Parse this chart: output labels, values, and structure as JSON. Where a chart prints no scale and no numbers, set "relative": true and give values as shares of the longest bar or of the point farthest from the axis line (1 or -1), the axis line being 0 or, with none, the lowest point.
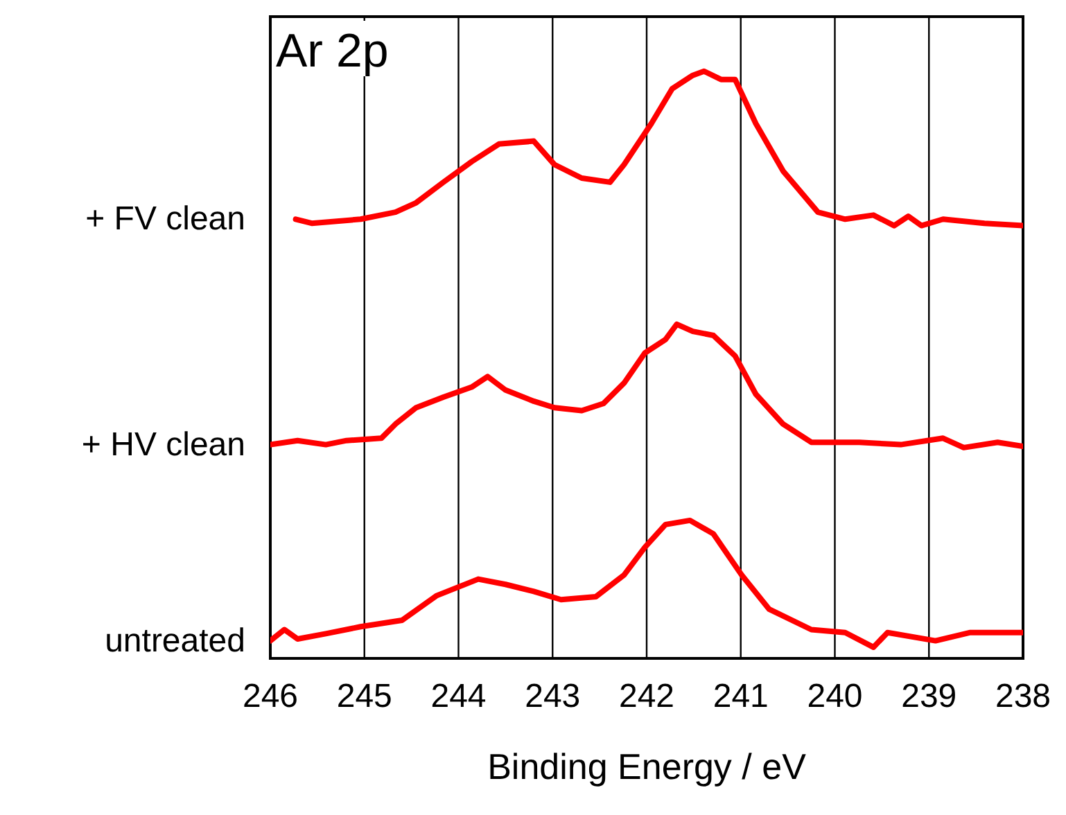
{
  "chart_data": {
    "type": "line",
    "relative": true,
    "xlabel": "Binding Energy / eV",
    "annotations": [
      "Ar 2p"
    ],
    "xlim": [
      246,
      238
    ],
    "xticks": [
      246,
      245,
      244,
      243,
      242,
      241,
      240,
      239,
      238
    ],
    "grid": "x",
    "marker": "none",
    "line_style": "solid",
    "series": [
      {
        "name": "+ FV clean",
        "color": "#ff0000",
        "x": [
          245.73,
          245.56,
          245.04,
          244.67,
          244.45,
          244.16,
          243.86,
          243.57,
          243.2,
          242.98,
          242.69,
          242.39,
          242.24,
          241.95,
          241.73,
          241.51,
          241.39,
          241.21,
          241.06,
          240.84,
          240.55,
          240.18,
          239.89,
          239.59,
          239.37,
          239.22,
          239.08,
          238.85,
          238.41,
          238.0
        ],
        "values": [
          0.748,
          0.741,
          0.748,
          0.76,
          0.776,
          0.811,
          0.846,
          0.876,
          0.881,
          0.841,
          0.818,
          0.811,
          0.841,
          0.911,
          0.97,
          0.993,
          1.0,
          0.986,
          0.986,
          0.911,
          0.83,
          0.76,
          0.748,
          0.755,
          0.737,
          0.753,
          0.737,
          0.748,
          0.741,
          0.737
        ]
      },
      {
        "name": "+ HV clean",
        "color": "#ff0000",
        "x": [
          246.0,
          245.71,
          245.41,
          245.19,
          244.82,
          244.67,
          244.45,
          244.16,
          243.86,
          243.69,
          243.5,
          243.2,
          242.98,
          242.69,
          242.46,
          242.24,
          242.02,
          241.8,
          241.68,
          241.51,
          241.29,
          241.06,
          240.84,
          240.55,
          240.25,
          239.74,
          239.3,
          238.85,
          238.63,
          238.27,
          238.0
        ],
        "values": [
          0.364,
          0.371,
          0.364,
          0.371,
          0.375,
          0.399,
          0.427,
          0.445,
          0.462,
          0.48,
          0.457,
          0.438,
          0.427,
          0.422,
          0.434,
          0.469,
          0.52,
          0.543,
          0.569,
          0.557,
          0.55,
          0.515,
          0.45,
          0.399,
          0.368,
          0.368,
          0.364,
          0.375,
          0.359,
          0.368,
          0.361
        ]
      },
      {
        "name": "untreated",
        "color": "#ff0000",
        "x": [
          246.0,
          245.85,
          245.71,
          245.41,
          245.04,
          244.6,
          244.23,
          243.79,
          243.5,
          243.2,
          242.91,
          242.54,
          242.24,
          242.02,
          241.8,
          241.54,
          241.29,
          240.99,
          240.7,
          240.25,
          239.89,
          239.59,
          239.44,
          238.93,
          238.56,
          238.0
        ],
        "values": [
          0.03,
          0.049,
          0.033,
          0.042,
          0.054,
          0.065,
          0.107,
          0.135,
          0.126,
          0.114,
          0.1,
          0.105,
          0.142,
          0.189,
          0.228,
          0.235,
          0.212,
          0.142,
          0.084,
          0.049,
          0.044,
          0.019,
          0.044,
          0.03,
          0.044,
          0.044
        ]
      }
    ]
  }
}
